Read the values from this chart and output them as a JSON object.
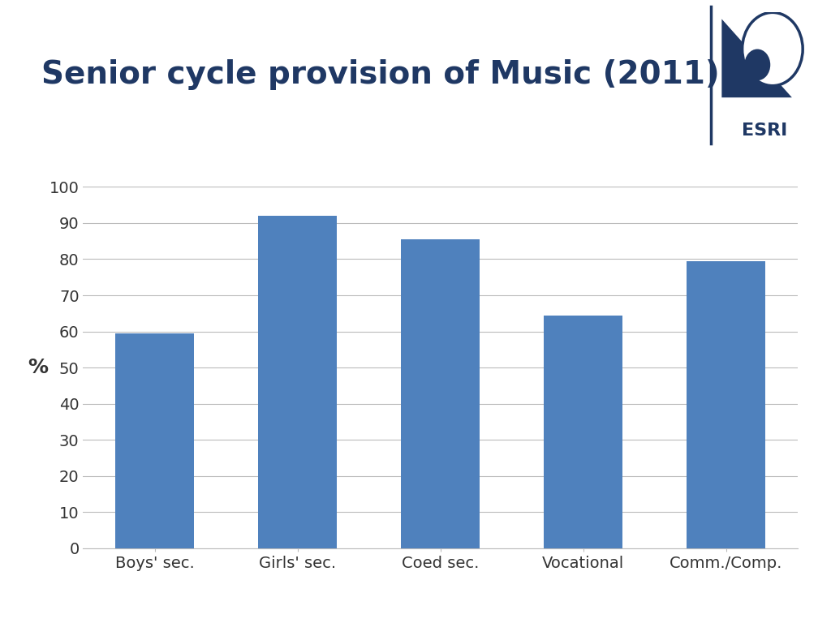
{
  "title": "Senior cycle provision of Music (2011)",
  "title_color": "#1F3864",
  "title_fontsize": 28,
  "ylabel": "%",
  "ylabel_fontsize": 18,
  "ylabel_color": "#333333",
  "categories": [
    "Boys' sec.",
    "Girls' sec.",
    "Coed sec.",
    "Vocational",
    "Comm./Comp."
  ],
  "values": [
    59.5,
    92.0,
    85.5,
    64.5,
    79.5
  ],
  "bar_color": "#4F81BD",
  "ylim": [
    0,
    100
  ],
  "yticks": [
    0,
    10,
    20,
    30,
    40,
    50,
    60,
    70,
    80,
    90,
    100
  ],
  "background_color": "#FFFFFF",
  "grid_color": "#BBBBBB",
  "tick_fontsize": 14,
  "xtick_fontsize": 14,
  "logo_line_color": "#1F3864",
  "esri_text_color": "#1F3864"
}
